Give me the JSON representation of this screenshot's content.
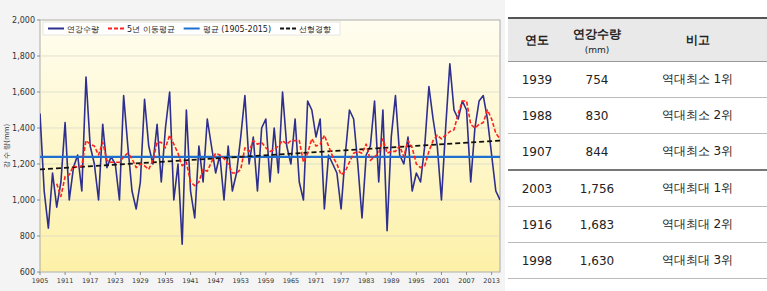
{
  "chart_data": {
    "type": "line",
    "y_label": "강 수 량(mm)",
    "x": [
      1905,
      1906,
      1907,
      1908,
      1909,
      1910,
      1911,
      1912,
      1913,
      1914,
      1915,
      1916,
      1917,
      1918,
      1919,
      1920,
      1921,
      1922,
      1923,
      1924,
      1925,
      1926,
      1927,
      1928,
      1929,
      1930,
      1931,
      1932,
      1933,
      1934,
      1935,
      1936,
      1937,
      1938,
      1939,
      1940,
      1941,
      1942,
      1943,
      1944,
      1945,
      1946,
      1947,
      1948,
      1949,
      1950,
      1951,
      1952,
      1953,
      1954,
      1955,
      1956,
      1957,
      1958,
      1959,
      1960,
      1961,
      1962,
      1963,
      1964,
      1965,
      1966,
      1967,
      1968,
      1969,
      1970,
      1971,
      1972,
      1973,
      1974,
      1975,
      1976,
      1977,
      1978,
      1979,
      1980,
      1981,
      1982,
      1983,
      1984,
      1985,
      1986,
      1987,
      1988,
      1989,
      1990,
      1991,
      1992,
      1993,
      1994,
      1995,
      1996,
      1997,
      1998,
      1999,
      2000,
      2001,
      2002,
      2003,
      2004,
      2005,
      2006,
      2007,
      2008,
      2009,
      2010,
      2011,
      2012,
      2013,
      2014,
      2015
    ],
    "series": [
      {
        "name": "연강수량",
        "color": "#2e2f8f",
        "line_style": "solid",
        "values": [
          1480,
          1050,
          844,
          1150,
          960,
          1100,
          1430,
          1000,
          1180,
          1250,
          1050,
          1683,
          1300,
          1200,
          1000,
          1420,
          1180,
          1240,
          1200,
          1000,
          1580,
          1300,
          1050,
          950,
          1100,
          1560,
          1300,
          1200,
          1420,
          1100,
          1400,
          1600,
          1000,
          1200,
          754,
          1500,
          1050,
          900,
          1300,
          1100,
          1450,
          1300,
          1150,
          1250,
          1000,
          1300,
          1050,
          1150,
          1350,
          1580,
          1200,
          1350,
          1050,
          1400,
          1450,
          1100,
          1400,
          1150,
          1600,
          1300,
          1200,
          1450,
          1100,
          1000,
          1550,
          1500,
          1350,
          1450,
          950,
          1250,
          1200,
          1150,
          950,
          1250,
          1500,
          1450,
          1200,
          900,
          1250,
          1300,
          1550,
          1100,
          1500,
          830,
          1350,
          1580,
          1250,
          1200,
          1350,
          1050,
          1150,
          1100,
          1300,
          1630,
          1450,
          1300,
          1000,
          1400,
          1756,
          1500,
          1450,
          1550,
          1500,
          1100,
          1400,
          1550,
          1580,
          1450,
          1250,
          1050,
          1000
        ]
      },
      {
        "name": "5년 이동평균",
        "color": "#ff2020",
        "line_style": "dashed",
        "values": [
          null,
          null,
          null,
          null,
          1090,
          1020,
          1130,
          1140,
          1190,
          1180,
          1190,
          1330,
          1310,
          1300,
          1250,
          1320,
          1220,
          1210,
          1210,
          1210,
          1240,
          1260,
          1230,
          1180,
          1200,
          1190,
          1170,
          1220,
          1320,
          1320,
          1290,
          1360,
          1310,
          1260,
          1190,
          1210,
          1100,
          1080,
          1100,
          1170,
          1160,
          1210,
          1260,
          1250,
          1230,
          1200,
          1150,
          1150,
          1170,
          1290,
          1270,
          1330,
          1310,
          1320,
          1290,
          1270,
          1280,
          1300,
          1330,
          1310,
          1330,
          1330,
          1330,
          1210,
          1260,
          1340,
          1300,
          1310,
          1360,
          1300,
          1240,
          1200,
          1140,
          1160,
          1210,
          1260,
          1270,
          1260,
          1310,
          1220,
          1240,
          1260,
          1340,
          1260,
          1270,
          1270,
          1300,
          1240,
          1330,
          1290,
          1200,
          1180,
          1190,
          1270,
          1330,
          1360,
          1340,
          1360,
          1380,
          1390,
          1480,
          1550,
          1550,
          1420,
          1400,
          1420,
          1430,
          1500,
          1450,
          1370,
          1340
        ]
      },
      {
        "name": "평균 (1905-2015)",
        "color": "#1f6fd0",
        "line_style": "solid",
        "x": [
          1905,
          2015
        ],
        "values": [
          1240,
          1240
        ]
      },
      {
        "name": "선형경향",
        "color": "#111111",
        "line_style": "dashed",
        "x": [
          1905,
          2015
        ],
        "values": [
          1170,
          1330
        ]
      }
    ],
    "xlim": [
      1905,
      2015
    ],
    "xticks": [
      1905,
      1911,
      1917,
      1923,
      1929,
      1935,
      1941,
      1947,
      1953,
      1959,
      1965,
      1971,
      1977,
      1983,
      1989,
      1995,
      2001,
      2007,
      2013
    ],
    "ylim": [
      600,
      2000
    ],
    "yticks": [
      600,
      800,
      {
        "value": 1000,
        "label": "1,000"
      },
      {
        "value": 1200,
        "label": "1,200"
      },
      {
        "value": 1400,
        "label": "1,400"
      },
      {
        "value": 1600,
        "label": "1,600"
      },
      {
        "value": 1800,
        "label": "1,800"
      },
      {
        "value": 2000,
        "label": "2,000"
      }
    ],
    "grid": true,
    "legend": "top-left"
  },
  "table": {
    "header": [
      "연도",
      "연강수량",
      "비고"
    ],
    "header_unit": "(mm)",
    "rows": [
      [
        "1939",
        "754",
        "역대최소 1위"
      ],
      [
        "1988",
        "830",
        "역대최소 2위"
      ],
      [
        "1907",
        "844",
        "역대최소 3위"
      ],
      [
        "2003",
        "1,756",
        "역대최대 1위"
      ],
      [
        "1916",
        "1,683",
        "역대최대 2위"
      ],
      [
        "1998",
        "1,630",
        "역대최대 3위"
      ]
    ]
  }
}
